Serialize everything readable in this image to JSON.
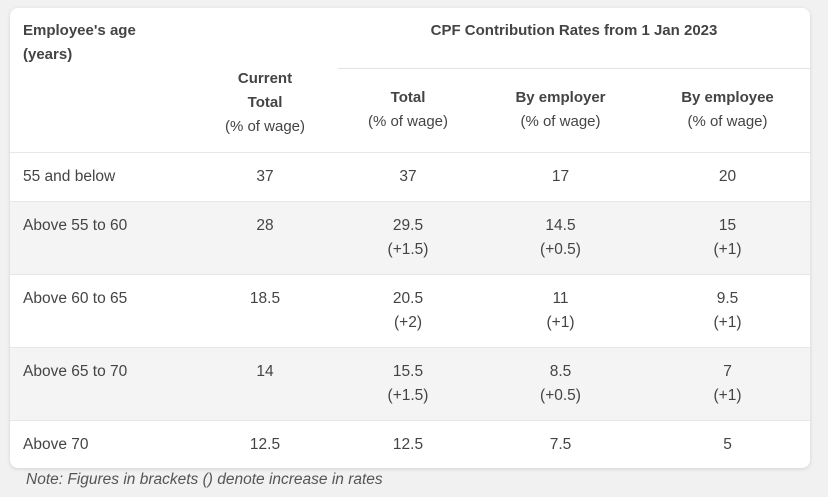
{
  "header": {
    "age_line1": "Employee's age",
    "age_line2": "(years)",
    "group_title": "CPF Contribution Rates from 1 Jan 2023",
    "current": {
      "line1": "Current",
      "line2": "Total",
      "unit": "(% of wage)"
    },
    "total": {
      "label": "Total",
      "unit": "(% of wage)"
    },
    "employer": {
      "label": "By employer",
      "unit": "(% of wage)"
    },
    "employee": {
      "label": "By employee",
      "unit": "(% of wage)"
    }
  },
  "rows": [
    {
      "age": "55 and below",
      "current": "37",
      "total": "37",
      "total_inc": "",
      "employer": "17",
      "employer_inc": "",
      "employee": "20",
      "employee_inc": ""
    },
    {
      "age": "Above 55 to 60",
      "current": "28",
      "total": "29.5",
      "total_inc": "(+1.5)",
      "employer": "14.5",
      "employer_inc": "(+0.5)",
      "employee": "15",
      "employee_inc": "(+1)"
    },
    {
      "age": "Above 60 to 65",
      "current": "18.5",
      "total": "20.5",
      "total_inc": "(+2)",
      "employer": "11",
      "employer_inc": "(+1)",
      "employee": "9.5",
      "employee_inc": "(+1)"
    },
    {
      "age": "Above 65 to 70",
      "current": "14",
      "total": "15.5",
      "total_inc": "(+1.5)",
      "employer": "8.5",
      "employer_inc": "(+0.5)",
      "employee": "7",
      "employee_inc": "(+1)"
    },
    {
      "age": "Above 70",
      "current": "12.5",
      "total": "12.5",
      "total_inc": "",
      "employer": "7.5",
      "employer_inc": "",
      "employee": "5",
      "employee_inc": ""
    }
  ],
  "note": "Note: Figures in brackets () denote increase in rates"
}
